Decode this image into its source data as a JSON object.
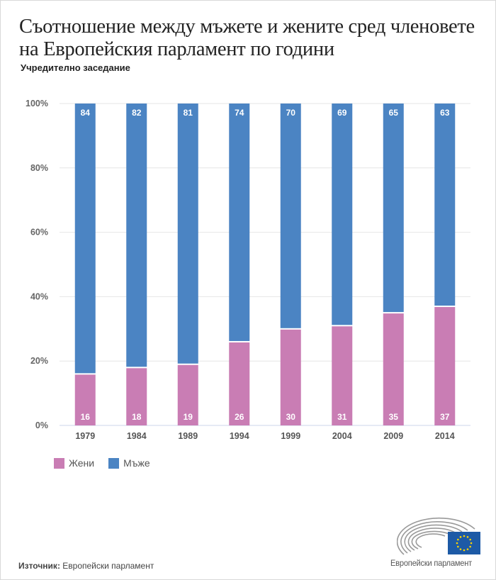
{
  "header": {
    "title": "Съотношение между мъжете и жените сред членовете на Европейския парламент по години",
    "subtitle": "Учредително заседание"
  },
  "legend": [
    {
      "label": "Жени",
      "color": "#c97db4"
    },
    {
      "label": "Мъже",
      "color": "#4b84c3"
    }
  ],
  "footer": {
    "source_label": "Източник:",
    "source_value": "Европейски парламент",
    "logo_text": "Европейски парламент",
    "logo_icon": "european-parliament-logo-icon"
  },
  "chart_data": {
    "type": "bar",
    "stacked": true,
    "percent": true,
    "title": "Съотношение между мъжете и жените сред членовете на Европейския парламент по години",
    "subtitle": "Учредително заседание",
    "xlabel": "",
    "ylabel": "",
    "categories": [
      "1979",
      "1984",
      "1989",
      "1994",
      "1999",
      "2004",
      "2009",
      "2014"
    ],
    "series": [
      {
        "name": "Жени",
        "color": "#c97db4",
        "values": [
          16,
          18,
          19,
          26,
          30,
          31,
          35,
          37
        ]
      },
      {
        "name": "Мъже",
        "color": "#4b84c3",
        "values": [
          84,
          82,
          81,
          74,
          70,
          69,
          65,
          63
        ]
      }
    ],
    "ylim": [
      0,
      100
    ],
    "yticks": [
      "0%",
      "20%",
      "40%",
      "60%",
      "80%",
      "100%"
    ],
    "grid": true,
    "legend_position": "bottom-left",
    "data_labels": true
  }
}
